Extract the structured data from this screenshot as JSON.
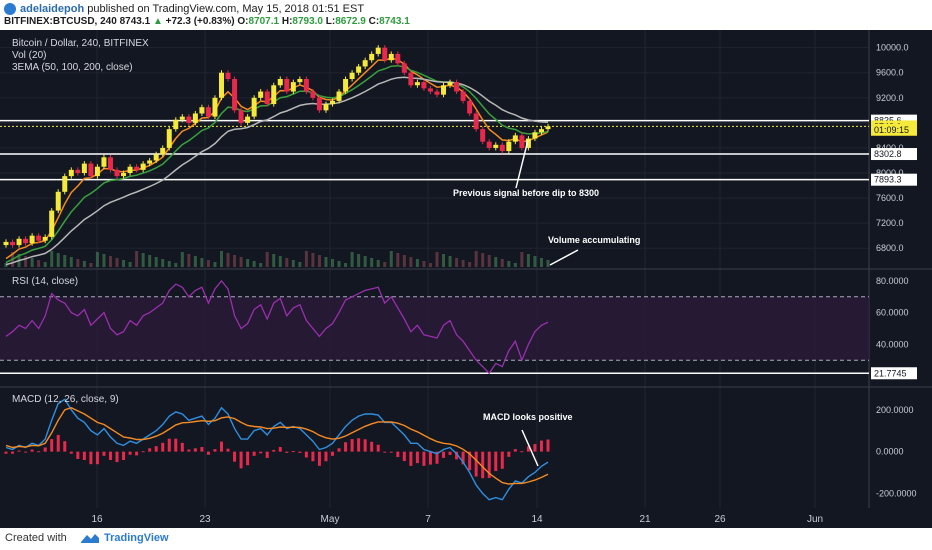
{
  "header": {
    "author": "adelaidepoh",
    "published_text": "published on TradingView.com, May 15, 2018 01:51 EST",
    "symbol": "BITFINEX:BTCUSD, 240",
    "last": "8743.1",
    "change": "+72.3 (+0.83%)",
    "open_label": "O:",
    "open": "8707.1",
    "high_label": "H:",
    "high": "8793.0",
    "low_label": "L:",
    "low": "8672.9",
    "close_label": "C:",
    "close": "8743.1"
  },
  "footer": {
    "created_with": "Created with",
    "brand": "TradingView"
  },
  "colors": {
    "background": "#131722",
    "candle_up": "#f5e93b",
    "candle_down": "#e8294b",
    "ema50": "#f58b22",
    "ema100": "#39a03c",
    "ema200": "#b8b8b8",
    "rsi": "#9b2fae",
    "macd": "#2f8fe0",
    "signal": "#f58b22",
    "hist": "#e8294b"
  },
  "chart_data": [
    {
      "type": "candlestick",
      "title": "Bitcoin / Dollar, 240, BITFINEX",
      "indicators": [
        "Vol (20)",
        "3EMA (50, 100, 200, close)"
      ],
      "ylim": [
        6500,
        10250
      ],
      "y_ticks": [
        "10000.0",
        "9600.0",
        "9200.0",
        "8800.0",
        "8400.0",
        "8000.0",
        "7600.0",
        "7200.0",
        "6800.0"
      ],
      "x_ticks": [
        "16",
        "23",
        "May",
        "7",
        "14",
        "21",
        "26",
        "Jun"
      ],
      "price_labels": [
        {
          "value": 8835.6,
          "label": "8835.6"
        },
        {
          "value": 8743.1,
          "label": "8743.1"
        },
        {
          "value": 8690,
          "label": "01:09:15"
        },
        {
          "value": 8302.8,
          "label": "8302.8"
        },
        {
          "value": 7893.3,
          "label": "7893.3"
        }
      ],
      "horizontal_lines": [
        8835.6,
        8302.8,
        7893.3
      ],
      "close_series": [
        6900,
        6850,
        6950,
        6880,
        7000,
        6920,
        6980,
        7400,
        7700,
        7950,
        8050,
        8000,
        8150,
        7950,
        8100,
        8250,
        8050,
        7950,
        8000,
        8100,
        8050,
        8150,
        8200,
        8300,
        8400,
        8700,
        8850,
        8900,
        8800,
        8950,
        9050,
        8900,
        9200,
        9600,
        9500,
        9000,
        8800,
        8900,
        9200,
        9300,
        9100,
        9400,
        9500,
        9300,
        9450,
        9500,
        9300,
        9200,
        9000,
        9100,
        9150,
        9300,
        9500,
        9600,
        9700,
        9800,
        9900,
        10000,
        9800,
        9900,
        9750,
        9600,
        9400,
        9450,
        9350,
        9300,
        9250,
        9400,
        9450,
        9300,
        9150,
        8950,
        8700,
        8500,
        8400,
        8450,
        8350,
        8500,
        8600,
        8400,
        8550,
        8650,
        8700,
        8743.1
      ],
      "annotations": [
        "Previous signal before dip to 8300",
        "Volume accumulating"
      ]
    },
    {
      "type": "line",
      "title": "RSI (14, close)",
      "ylim": [
        15,
        85
      ],
      "y_ticks": [
        "80.0000",
        "60.0000",
        "40.0000"
      ],
      "last_label": "21.7745",
      "bands": [
        70,
        30
      ],
      "values": [
        45,
        48,
        52,
        50,
        55,
        50,
        58,
        72,
        68,
        66,
        60,
        58,
        62,
        52,
        56,
        60,
        50,
        46,
        48,
        55,
        52,
        58,
        60,
        63,
        66,
        74,
        78,
        76,
        70,
        74,
        76,
        66,
        75,
        80,
        75,
        58,
        50,
        53,
        62,
        65,
        56,
        66,
        69,
        58,
        63,
        65,
        55,
        50,
        45,
        50,
        53,
        60,
        68,
        70,
        72,
        74,
        75,
        76,
        66,
        70,
        63,
        56,
        48,
        52,
        46,
        45,
        44,
        52,
        55,
        46,
        42,
        36,
        30,
        26,
        21.77,
        28,
        26,
        36,
        42,
        30,
        40,
        48,
        52,
        54
      ]
    },
    {
      "type": "line",
      "title": "MACD (12, 26, close, 9)",
      "ylim": [
        -260,
        290
      ],
      "y_ticks": [
        "200.0000",
        "0.0000",
        "-200.0000"
      ],
      "annotations": [
        "MACD looks positive"
      ],
      "series": [
        {
          "name": "MACD",
          "values": [
            20,
            10,
            30,
            20,
            40,
            30,
            60,
            150,
            230,
            250,
            200,
            160,
            140,
            100,
            80,
            110,
            70,
            40,
            30,
            50,
            40,
            60,
            80,
            100,
            130,
            170,
            190,
            180,
            150,
            160,
            170,
            130,
            160,
            210,
            180,
            110,
            60,
            60,
            100,
            110,
            80,
            120,
            140,
            110,
            120,
            110,
            80,
            50,
            10,
            20,
            40,
            80,
            120,
            150,
            170,
            180,
            180,
            175,
            140,
            140,
            110,
            80,
            40,
            40,
            10,
            0,
            -10,
            10,
            20,
            -10,
            -50,
            -100,
            -160,
            -200,
            -230,
            -220,
            -230,
            -180,
            -140,
            -150,
            -120,
            -100,
            -70,
            -50
          ]
        },
        {
          "name": "Signal",
          "values": [
            30,
            20,
            25,
            22,
            30,
            28,
            40,
            90,
            150,
            200,
            210,
            195,
            180,
            160,
            140,
            130,
            110,
            90,
            70,
            65,
            58,
            58,
            64,
            74,
            88,
            108,
            128,
            138,
            140,
            144,
            148,
            145,
            148,
            162,
            166,
            158,
            140,
            125,
            120,
            118,
            110,
            112,
            118,
            116,
            117,
            116,
            108,
            96,
            78,
            66,
            60,
            64,
            75,
            90,
            106,
            121,
            133,
            142,
            142,
            142,
            136,
            125,
            108,
            95,
            78,
            62,
            48,
            40,
            36,
            27,
            11,
            -11,
            -41,
            -73,
            -104,
            -127,
            -148,
            -155,
            -152,
            -152,
            -145,
            -136,
            -123,
            -108
          ]
        }
      ],
      "histogram": [
        -10,
        -10,
        5,
        -2,
        10,
        2,
        20,
        60,
        80,
        50,
        -10,
        -35,
        -40,
        -60,
        -60,
        -20,
        -40,
        -50,
        -40,
        -15,
        -18,
        2,
        16,
        26,
        42,
        62,
        62,
        42,
        10,
        16,
        22,
        -15,
        12,
        48,
        14,
        -48,
        -80,
        -65,
        -20,
        -8,
        -30,
        8,
        22,
        -6,
        3,
        -6,
        -28,
        -46,
        -68,
        -46,
        -20,
        16,
        45,
        60,
        64,
        59,
        47,
        33,
        -2,
        -2,
        -26,
        -45,
        -68,
        -55,
        -68,
        -62,
        -58,
        -30,
        -16,
        -37,
        -61,
        -89,
        -119,
        -127,
        -126,
        -93,
        -82,
        -25,
        12,
        2,
        25,
        36,
        53,
        58
      ]
    }
  ]
}
